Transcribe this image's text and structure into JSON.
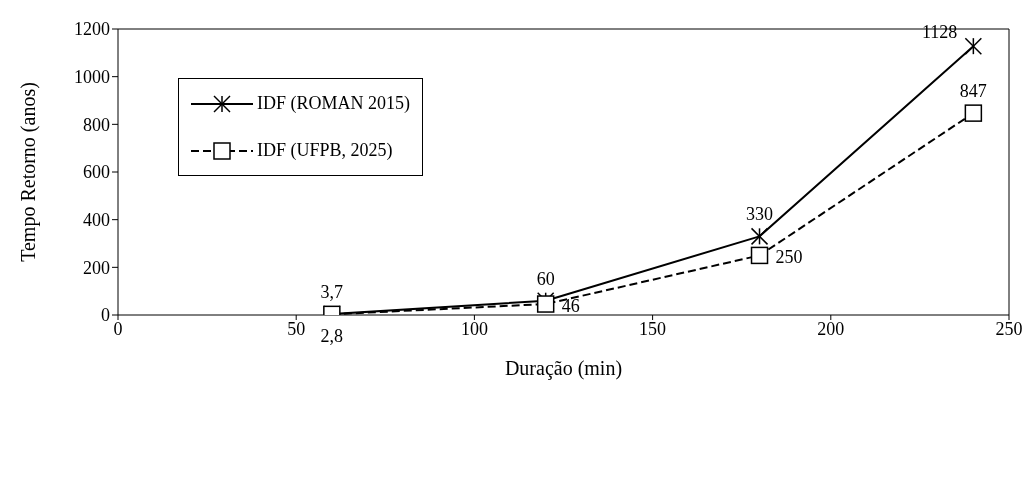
{
  "chart_data": {
    "type": "line",
    "xlabel": "Duração (min)",
    "ylabel": "Tempo Retorno (anos)",
    "x": [
      60,
      120,
      180,
      240
    ],
    "series": [
      {
        "name": "IDF (ROMAN 2015)",
        "color": "#000000",
        "values": [
          3.7,
          60,
          330,
          1128
        ],
        "value_labels": [
          "3,7",
          "60",
          "330",
          "1128"
        ],
        "marker": "cross",
        "line_style": "solid"
      },
      {
        "name": "IDF (UFPB, 2025)",
        "color": "#000000",
        "values": [
          2.8,
          46,
          250,
          847
        ],
        "value_labels": [
          "2,8",
          "46",
          "250",
          "847"
        ],
        "marker": "square",
        "line_style": "dashed"
      }
    ],
    "xlim": [
      0,
      250
    ],
    "xticks": [
      0,
      50,
      100,
      150,
      200,
      250
    ],
    "ylim": [
      0,
      1200
    ],
    "yticks": [
      0,
      200,
      400,
      600,
      800,
      1000,
      1200
    ],
    "grid": false,
    "legend": "top left"
  }
}
